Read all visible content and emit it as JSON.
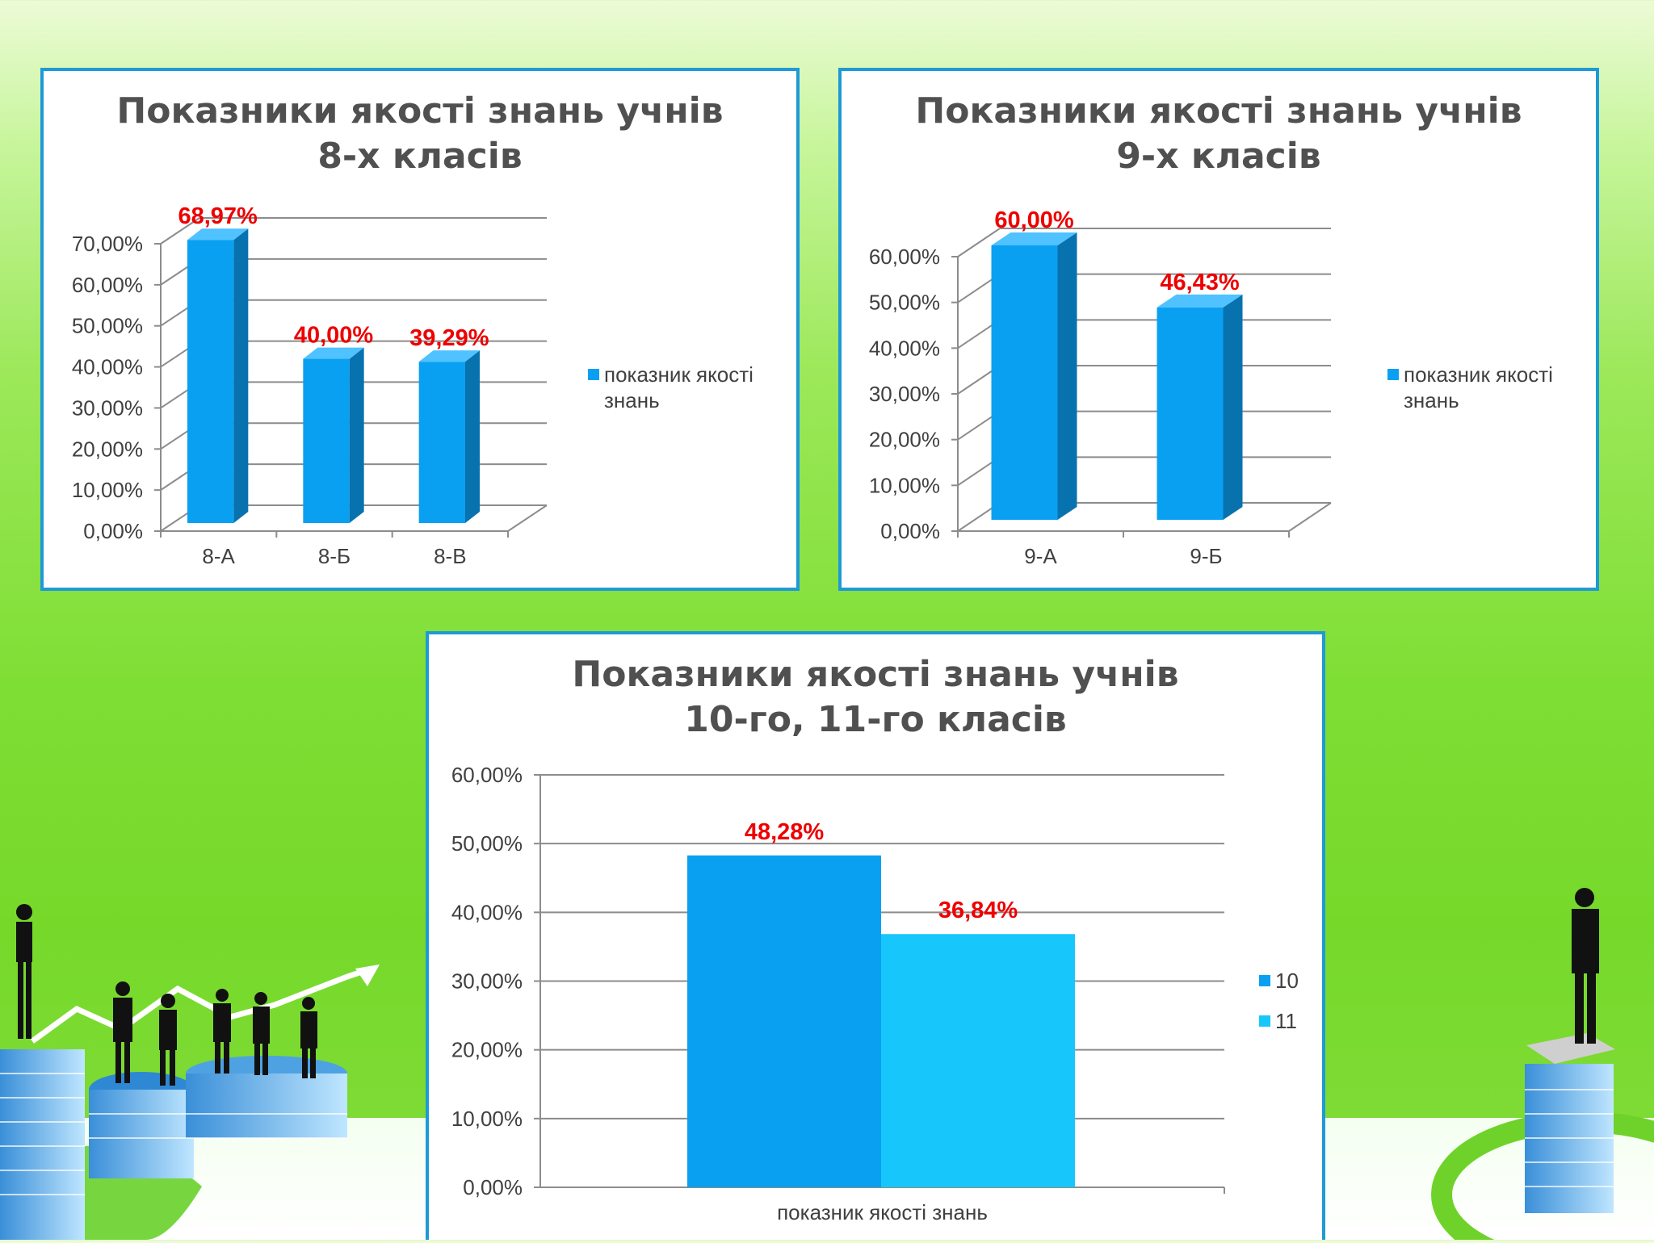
{
  "colors": {
    "bar_front": "#0aa0f2",
    "bar_side": "#0872ae",
    "bar_top": "#4fc2ff",
    "series_10": "#0aa0f2",
    "series_11": "#17c7fb",
    "data_label": "#ee0000",
    "frame": "#1e9ad6",
    "grid": "#8c8c8c"
  },
  "chart_data": [
    {
      "id": "grade8",
      "type": "bar",
      "style": "3d-column",
      "title_lines": [
        "Показники якості знань учнів",
        "8-х класів"
      ],
      "categories": [
        "8-А",
        "8-Б",
        "8-В"
      ],
      "series": [
        {
          "name": "показник якості знань",
          "values": [
            68.97,
            40.0,
            39.29
          ]
        }
      ],
      "data_labels": [
        "68,97%",
        "40,00%",
        "39,29%"
      ],
      "y_ticks": [
        "0,00%",
        "10,00%",
        "20,00%",
        "30,00%",
        "40,00%",
        "50,00%",
        "60,00%",
        "70,00%"
      ],
      "ylim": [
        0,
        70
      ],
      "grid": true,
      "legend": "right",
      "legend_lines": [
        "показник якості",
        "знань"
      ]
    },
    {
      "id": "grade9",
      "type": "bar",
      "style": "3d-column",
      "title_lines": [
        "Показники якості знань учнів",
        "9-х класів"
      ],
      "categories": [
        "9-А",
        "9-Б"
      ],
      "series": [
        {
          "name": "показник якості знань",
          "values": [
            60.0,
            46.43
          ]
        }
      ],
      "data_labels": [
        "60,00%",
        "46,43%"
      ],
      "y_ticks": [
        "0,00%",
        "10,00%",
        "20,00%",
        "30,00%",
        "40,00%",
        "50,00%",
        "60,00%"
      ],
      "ylim": [
        0,
        60
      ],
      "grid": true,
      "legend": "right",
      "legend_lines": [
        "показник якості",
        "знань"
      ]
    },
    {
      "id": "grade10_11",
      "type": "bar",
      "style": "clustered-column",
      "title_lines": [
        "Показники якості знань учнів",
        "10-го, 11-го класів"
      ],
      "categories": [
        "показник якості знань"
      ],
      "series": [
        {
          "name": "10",
          "values": [
            48.28
          ]
        },
        {
          "name": "11",
          "values": [
            36.84
          ]
        }
      ],
      "data_labels": [
        "48,28%",
        "36,84%"
      ],
      "y_ticks": [
        "0,00%",
        "10,00%",
        "20,00%",
        "30,00%",
        "40,00%",
        "50,00%",
        "60,00%"
      ],
      "ylim": [
        0,
        60
      ],
      "grid": true,
      "legend": "right"
    }
  ]
}
